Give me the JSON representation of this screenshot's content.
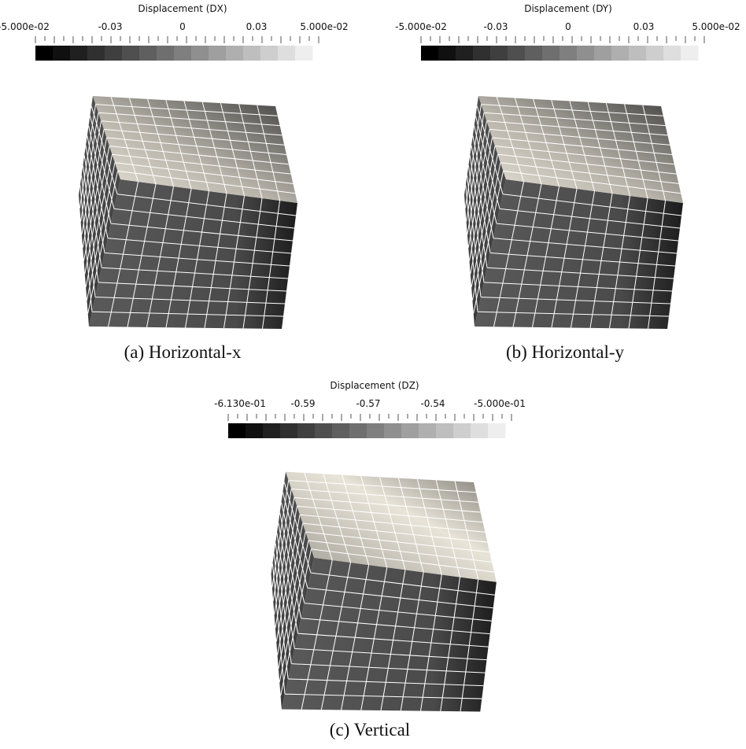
{
  "panels": [
    {
      "colorbar": {
        "title": "Displacement (DX)",
        "ticks": [
          "-5.000e-02",
          "-0.03",
          "0",
          "0.03",
          "5.000e-02"
        ]
      },
      "caption": "(a) Horizontal-x"
    },
    {
      "colorbar": {
        "title": "Displacement (DY)",
        "ticks": [
          "-5.000e-02",
          "-0.03",
          "0",
          "0.03",
          "5.000e-02"
        ]
      },
      "caption": "(b) Horizontal-y"
    },
    {
      "colorbar": {
        "title": "Displacement (DZ)",
        "ticks": [
          "-6.130e-01",
          "-0.59",
          "-0.57",
          "-0.54",
          "-5.000e-01"
        ]
      },
      "caption": "(c) Vertical"
    }
  ]
}
